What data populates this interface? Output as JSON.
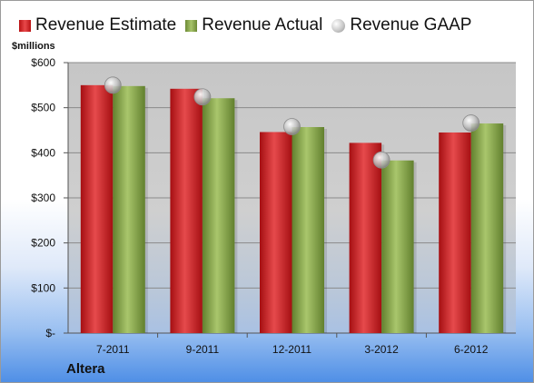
{
  "legend": {
    "estimate_label": "Revenue Estimate",
    "actual_label": "Revenue Actual",
    "gaap_label": "Revenue GAAP"
  },
  "units_label": "$millions",
  "company": "Altera",
  "colors": {
    "estimate": "#cc2224",
    "actual": "#8aab4c",
    "gaap": "#c8c8c8",
    "plot_bg": "#c8c8c8"
  },
  "chart_data": {
    "type": "bar",
    "title": "",
    "xlabel": "",
    "ylabel": "$millions",
    "categories": [
      "7-2011",
      "9-2011",
      "12-2011",
      "3-2012",
      "6-2012"
    ],
    "series": [
      {
        "name": "Revenue Estimate",
        "kind": "bar",
        "values": [
          550,
          542,
          446,
          422,
          445
        ]
      },
      {
        "name": "Revenue Actual",
        "kind": "bar",
        "values": [
          548,
          521,
          457,
          383,
          465
        ]
      },
      {
        "name": "Revenue GAAP",
        "kind": "marker",
        "values": [
          550,
          524,
          458,
          384,
          466
        ]
      }
    ],
    "ylim": [
      0,
      600
    ],
    "yticks": [
      0,
      100,
      200,
      300,
      400,
      500,
      600
    ],
    "ytick_labels": [
      "$-",
      "$100",
      "$200",
      "$300",
      "$400",
      "$500",
      "$600"
    ],
    "grid": true,
    "legend_position": "top"
  }
}
